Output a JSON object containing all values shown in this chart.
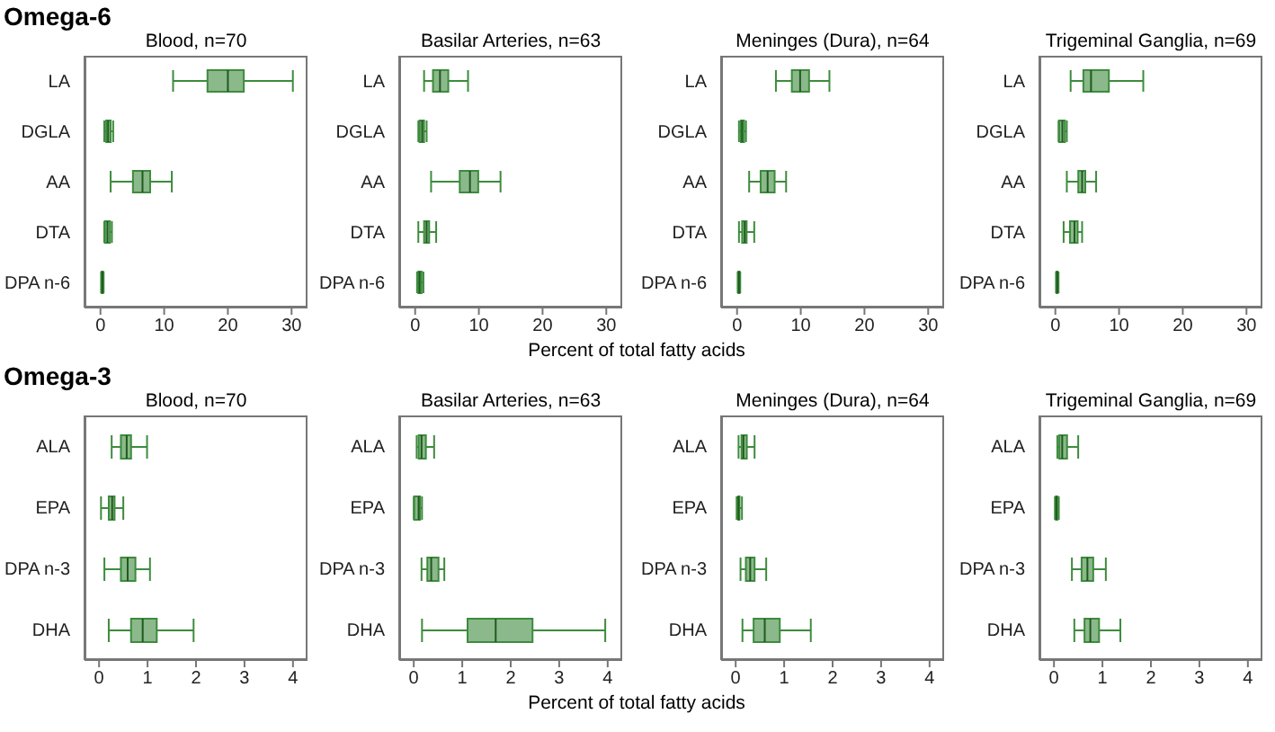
{
  "chart_data": [
    {
      "type": "box",
      "orientation": "horizontal",
      "title": "Blood, n=70",
      "annotations": [
        "Omega-6"
      ],
      "categories": [
        "LA",
        "DGLA",
        "AA",
        "DTA",
        "DPA n-6"
      ],
      "color": "#3d8b3d",
      "xlim": [
        -2.5,
        32.5
      ],
      "xticks": [
        0,
        10,
        20,
        30
      ],
      "boxes": [
        {
          "low": 11.4,
          "q1": 16.8,
          "median": 20,
          "q3": 22.5,
          "high": 30.2
        },
        {
          "low": 0.6,
          "q1": 0.9,
          "median": 1.2,
          "q3": 1.6,
          "high": 2
        },
        {
          "low": 1.6,
          "q1": 5.1,
          "median": 6.6,
          "q3": 7.8,
          "high": 11.2
        },
        {
          "low": 0.6,
          "q1": 0.7,
          "median": 1.1,
          "q3": 1.5,
          "high": 1.8
        },
        {
          "low": 0.1,
          "q1": 0.2,
          "median": 0.3,
          "q3": 0.4,
          "high": 0.5
        }
      ]
    },
    {
      "type": "box",
      "orientation": "horizontal",
      "title": "Basilar Arteries, n=63",
      "xlabel": "Percent of total fatty acids",
      "categories": [
        "LA",
        "DGLA",
        "AA",
        "DTA",
        "DPA n-6"
      ],
      "color": "#3d8b3d",
      "xlim": [
        -2.5,
        32.5
      ],
      "xticks": [
        0,
        10,
        20,
        30
      ],
      "boxes": [
        {
          "low": 1.4,
          "q1": 2.8,
          "median": 3.9,
          "q3": 5.2,
          "high": 8.3
        },
        {
          "low": 0.5,
          "q1": 0.7,
          "median": 1.1,
          "q3": 1.4,
          "high": 1.8
        },
        {
          "low": 2.5,
          "q1": 7,
          "median": 8.6,
          "q3": 9.9,
          "high": 13.4
        },
        {
          "low": 0.5,
          "q1": 1.4,
          "median": 1.8,
          "q3": 2.2,
          "high": 3.3
        },
        {
          "low": 0.3,
          "q1": 0.5,
          "median": 0.7,
          "q3": 1,
          "high": 1.3
        }
      ]
    },
    {
      "type": "box",
      "orientation": "horizontal",
      "title": "Meninges (Dura), n=64",
      "categories": [
        "LA",
        "DGLA",
        "AA",
        "DTA",
        "DPA n-6"
      ],
      "color": "#3d8b3d",
      "xlim": [
        -2.5,
        32.5
      ],
      "xticks": [
        0,
        10,
        20,
        30
      ],
      "boxes": [
        {
          "low": 6.1,
          "q1": 8.6,
          "median": 9.9,
          "q3": 11.3,
          "high": 14.5
        },
        {
          "low": 0.3,
          "q1": 0.6,
          "median": 0.8,
          "q3": 1.1,
          "high": 1.4
        },
        {
          "low": 1.9,
          "q1": 3.7,
          "median": 4.8,
          "q3": 5.9,
          "high": 7.7
        },
        {
          "low": 0.3,
          "q1": 0.8,
          "median": 1.2,
          "q3": 1.5,
          "high": 2.7
        },
        {
          "low": 0.1,
          "q1": 0.2,
          "median": 0.3,
          "q3": 0.4,
          "high": 0.5
        }
      ]
    },
    {
      "type": "box",
      "orientation": "horizontal",
      "title": "Trigeminal Ganglia, n=69",
      "categories": [
        "LA",
        "DGLA",
        "AA",
        "DTA",
        "DPA n-6"
      ],
      "color": "#3d8b3d",
      "xlim": [
        -2.5,
        32.5
      ],
      "xticks": [
        0,
        10,
        20,
        30
      ],
      "boxes": [
        {
          "low": 2.4,
          "q1": 4.4,
          "median": 5.6,
          "q3": 8.4,
          "high": 13.8
        },
        {
          "low": 0.5,
          "q1": 0.6,
          "median": 1.1,
          "q3": 1.5,
          "high": 1.8
        },
        {
          "low": 1.8,
          "q1": 3.6,
          "median": 4.2,
          "q3": 4.7,
          "high": 6.4
        },
        {
          "low": 1.3,
          "q1": 2.3,
          "median": 3,
          "q3": 3.5,
          "high": 4.2
        },
        {
          "low": 0.1,
          "q1": 0.2,
          "median": 0.3,
          "q3": 0.35,
          "high": 0.5
        }
      ]
    },
    {
      "type": "box",
      "orientation": "horizontal",
      "title": "Blood, n=70",
      "annotations": [
        "Omega-3"
      ],
      "categories": [
        "ALA",
        "EPA",
        "DPA n-3",
        "DHA"
      ],
      "color": "#3d8b3d",
      "xlim": [
        -0.3,
        4.3
      ],
      "xticks": [
        0,
        1,
        2,
        3,
        4
      ],
      "boxes": [
        {
          "low": 0.26,
          "q1": 0.45,
          "median": 0.57,
          "q3": 0.66,
          "high": 0.99
        },
        {
          "low": 0.04,
          "q1": 0.2,
          "median": 0.27,
          "q3": 0.32,
          "high": 0.5
        },
        {
          "low": 0.11,
          "q1": 0.45,
          "median": 0.59,
          "q3": 0.75,
          "high": 1.05
        },
        {
          "low": 0.2,
          "q1": 0.66,
          "median": 0.9,
          "q3": 1.19,
          "high": 1.95
        }
      ]
    },
    {
      "type": "box",
      "orientation": "horizontal",
      "title": "Basilar Arteries, n=63",
      "xlabel": "Percent of total fatty acids",
      "categories": [
        "ALA",
        "EPA",
        "DPA n-3",
        "DHA"
      ],
      "color": "#3d8b3d",
      "xlim": [
        -0.3,
        4.3
      ],
      "xticks": [
        0,
        1,
        2,
        3,
        4
      ],
      "boxes": [
        {
          "low": 0.06,
          "q1": 0.1,
          "median": 0.16,
          "q3": 0.25,
          "high": 0.42
        },
        {
          "low": 0,
          "q1": 0.01,
          "median": 0.1,
          "q3": 0.13,
          "high": 0.17
        },
        {
          "low": 0.16,
          "q1": 0.28,
          "median": 0.36,
          "q3": 0.51,
          "high": 0.63
        },
        {
          "low": 0.17,
          "q1": 1.11,
          "median": 1.69,
          "q3": 2.45,
          "high": 3.95
        }
      ]
    },
    {
      "type": "box",
      "orientation": "horizontal",
      "title": "Meninges (Dura), n=64",
      "categories": [
        "ALA",
        "EPA",
        "DPA n-3",
        "DHA"
      ],
      "color": "#3d8b3d",
      "xlim": [
        -0.3,
        4.3
      ],
      "xticks": [
        0,
        1,
        2,
        3,
        4
      ],
      "boxes": [
        {
          "low": 0.06,
          "q1": 0.12,
          "median": 0.16,
          "q3": 0.23,
          "high": 0.39
        },
        {
          "low": 0.02,
          "q1": 0.05,
          "median": 0.06,
          "q3": 0.08,
          "high": 0.13
        },
        {
          "low": 0.1,
          "q1": 0.21,
          "median": 0.3,
          "q3": 0.39,
          "high": 0.63
        },
        {
          "low": 0.14,
          "q1": 0.37,
          "median": 0.6,
          "q3": 0.91,
          "high": 1.55
        }
      ]
    },
    {
      "type": "box",
      "orientation": "horizontal",
      "title": "Trigeminal Ganglia, n=69",
      "categories": [
        "ALA",
        "EPA",
        "DPA n-3",
        "DHA"
      ],
      "color": "#3d8b3d",
      "xlim": [
        -0.3,
        4.3
      ],
      "xticks": [
        0,
        1,
        2,
        3,
        4
      ],
      "boxes": [
        {
          "low": 0.07,
          "q1": 0.11,
          "median": 0.17,
          "q3": 0.27,
          "high": 0.5
        },
        {
          "low": 0.02,
          "q1": 0.04,
          "median": 0.05,
          "q3": 0.07,
          "high": 0.1
        },
        {
          "low": 0.37,
          "q1": 0.57,
          "median": 0.69,
          "q3": 0.81,
          "high": 1.07
        },
        {
          "low": 0.42,
          "q1": 0.63,
          "median": 0.75,
          "q3": 0.93,
          "high": 1.37
        }
      ]
    }
  ]
}
